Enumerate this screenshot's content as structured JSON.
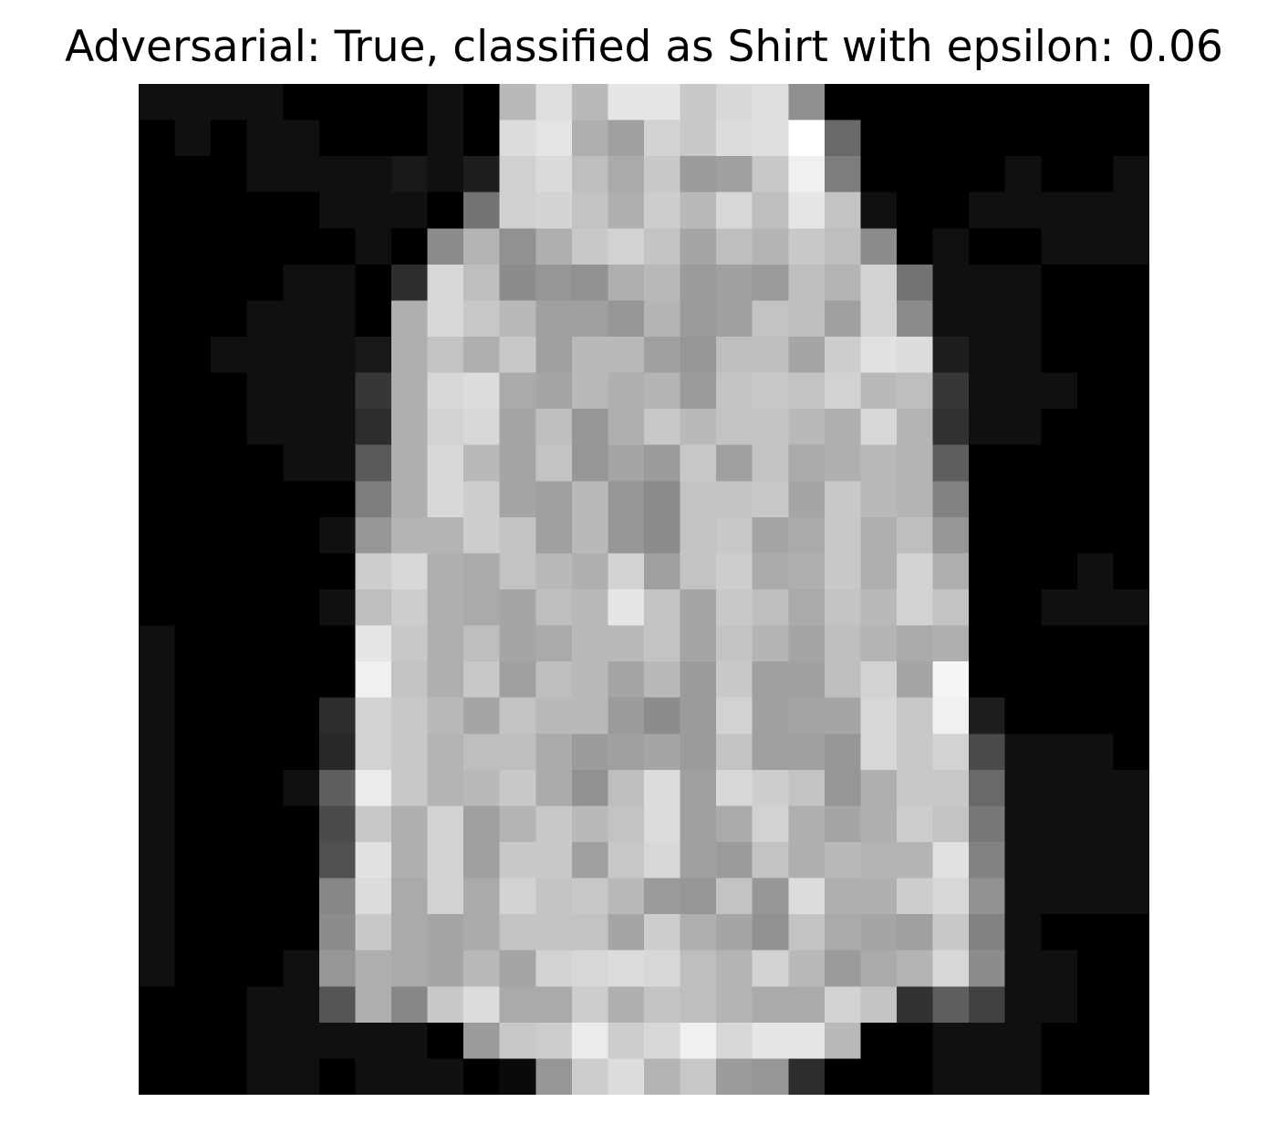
{
  "title": "Adversarial: True, classified as Shirt with epsilon: 0.06",
  "image": {
    "description_colormap": "gray",
    "width_cells": 28,
    "height_cells": 28,
    "pixels": [
      [
        16,
        16,
        16,
        16,
        0,
        0,
        0,
        0,
        16,
        0,
        185,
        222,
        185,
        230,
        230,
        200,
        215,
        222,
        143,
        0,
        0,
        0,
        0,
        0,
        0,
        0,
        0,
        0
      ],
      [
        0,
        16,
        0,
        16,
        16,
        0,
        0,
        0,
        16,
        0,
        220,
        228,
        175,
        160,
        210,
        200,
        220,
        222,
        255,
        105,
        0,
        0,
        0,
        0,
        0,
        0,
        0,
        0
      ],
      [
        0,
        0,
        0,
        16,
        16,
        16,
        16,
        24,
        16,
        30,
        208,
        218,
        190,
        170,
        200,
        155,
        160,
        200,
        240,
        125,
        0,
        0,
        0,
        0,
        16,
        0,
        0,
        16
      ],
      [
        0,
        0,
        0,
        0,
        0,
        16,
        16,
        16,
        0,
        115,
        208,
        212,
        195,
        175,
        205,
        185,
        215,
        190,
        230,
        195,
        16,
        0,
        0,
        16,
        16,
        16,
        16,
        16
      ],
      [
        0,
        0,
        0,
        0,
        0,
        0,
        16,
        0,
        140,
        180,
        145,
        175,
        200,
        210,
        195,
        165,
        190,
        180,
        200,
        190,
        140,
        0,
        16,
        0,
        0,
        16,
        16,
        16
      ],
      [
        0,
        0,
        0,
        0,
        16,
        16,
        0,
        45,
        215,
        190,
        140,
        150,
        145,
        175,
        185,
        155,
        160,
        155,
        190,
        180,
        210,
        115,
        16,
        16,
        16,
        0,
        0,
        0
      ],
      [
        0,
        0,
        0,
        16,
        16,
        16,
        0,
        175,
        215,
        200,
        185,
        160,
        160,
        150,
        180,
        155,
        160,
        195,
        190,
        160,
        210,
        140,
        16,
        16,
        16,
        0,
        0,
        0
      ],
      [
        0,
        0,
        16,
        16,
        16,
        16,
        24,
        175,
        195,
        175,
        200,
        160,
        185,
        185,
        160,
        150,
        190,
        190,
        165,
        205,
        225,
        220,
        30,
        16,
        16,
        0,
        0,
        0
      ],
      [
        0,
        0,
        0,
        16,
        16,
        16,
        55,
        175,
        215,
        220,
        170,
        165,
        185,
        175,
        180,
        155,
        195,
        200,
        195,
        210,
        185,
        190,
        55,
        16,
        16,
        16,
        0,
        0
      ],
      [
        0,
        0,
        0,
        16,
        16,
        16,
        45,
        175,
        210,
        215,
        165,
        190,
        150,
        175,
        200,
        185,
        195,
        195,
        185,
        175,
        215,
        180,
        50,
        16,
        16,
        0,
        0,
        0
      ],
      [
        0,
        0,
        0,
        0,
        16,
        16,
        90,
        175,
        215,
        185,
        165,
        195,
        150,
        165,
        155,
        200,
        160,
        195,
        170,
        175,
        185,
        180,
        95,
        0,
        0,
        0,
        0,
        0
      ],
      [
        0,
        0,
        0,
        0,
        0,
        0,
        125,
        175,
        215,
        205,
        165,
        160,
        185,
        150,
        140,
        195,
        195,
        200,
        165,
        200,
        185,
        180,
        130,
        0,
        0,
        0,
        0,
        0
      ],
      [
        0,
        0,
        0,
        0,
        0,
        16,
        150,
        180,
        180,
        205,
        195,
        160,
        185,
        150,
        140,
        195,
        200,
        165,
        170,
        200,
        175,
        190,
        150,
        0,
        0,
        0,
        0,
        0
      ],
      [
        0,
        0,
        0,
        0,
        0,
        0,
        205,
        215,
        175,
        170,
        195,
        185,
        175,
        210,
        160,
        195,
        205,
        170,
        175,
        200,
        175,
        210,
        175,
        0,
        0,
        0,
        16,
        0
      ],
      [
        0,
        0,
        0,
        0,
        0,
        16,
        190,
        205,
        175,
        170,
        165,
        190,
        185,
        230,
        195,
        165,
        200,
        190,
        170,
        195,
        185,
        210,
        195,
        0,
        0,
        16,
        16,
        16
      ],
      [
        16,
        0,
        0,
        0,
        0,
        0,
        230,
        200,
        175,
        190,
        165,
        170,
        185,
        185,
        195,
        165,
        195,
        180,
        165,
        190,
        180,
        170,
        175,
        0,
        0,
        0,
        0,
        0
      ],
      [
        16,
        0,
        0,
        0,
        0,
        0,
        240,
        195,
        175,
        200,
        160,
        190,
        185,
        165,
        185,
        155,
        200,
        160,
        160,
        190,
        210,
        165,
        245,
        0,
        0,
        0,
        0,
        0
      ],
      [
        16,
        0,
        0,
        0,
        0,
        45,
        210,
        200,
        185,
        165,
        195,
        185,
        185,
        155,
        140,
        155,
        210,
        160,
        165,
        165,
        215,
        200,
        240,
        30,
        0,
        0,
        0,
        0
      ],
      [
        16,
        0,
        0,
        0,
        0,
        40,
        210,
        200,
        180,
        190,
        190,
        170,
        155,
        160,
        165,
        155,
        195,
        160,
        160,
        150,
        215,
        200,
        210,
        75,
        16,
        16,
        16,
        0
      ],
      [
        16,
        0,
        0,
        0,
        16,
        95,
        235,
        200,
        180,
        185,
        200,
        170,
        145,
        190,
        220,
        160,
        215,
        205,
        195,
        150,
        175,
        200,
        200,
        105,
        16,
        16,
        16,
        16
      ],
      [
        16,
        0,
        0,
        0,
        0,
        75,
        200,
        175,
        210,
        160,
        180,
        200,
        185,
        195,
        220,
        160,
        170,
        210,
        175,
        165,
        175,
        205,
        195,
        120,
        16,
        16,
        16,
        16
      ],
      [
        16,
        0,
        0,
        0,
        0,
        80,
        225,
        175,
        210,
        160,
        200,
        200,
        160,
        200,
        215,
        160,
        155,
        195,
        175,
        185,
        180,
        180,
        225,
        130,
        16,
        16,
        16,
        16
      ],
      [
        16,
        0,
        0,
        0,
        0,
        135,
        220,
        170,
        210,
        170,
        210,
        195,
        200,
        185,
        155,
        150,
        195,
        150,
        220,
        175,
        175,
        205,
        215,
        145,
        16,
        16,
        16,
        16
      ],
      [
        16,
        0,
        0,
        0,
        0,
        140,
        200,
        170,
        165,
        170,
        195,
        195,
        195,
        165,
        205,
        175,
        165,
        145,
        195,
        170,
        165,
        160,
        200,
        130,
        16,
        0,
        0,
        0
      ],
      [
        16,
        0,
        0,
        0,
        16,
        150,
        175,
        170,
        165,
        185,
        165,
        210,
        215,
        220,
        215,
        190,
        180,
        210,
        185,
        155,
        170,
        180,
        215,
        140,
        16,
        16,
        0,
        0
      ],
      [
        0,
        0,
        0,
        16,
        16,
        85,
        175,
        135,
        200,
        220,
        170,
        170,
        205,
        175,
        195,
        190,
        180,
        170,
        170,
        210,
        195,
        50,
        95,
        65,
        16,
        16,
        0,
        0
      ],
      [
        0,
        0,
        0,
        16,
        16,
        16,
        16,
        16,
        0,
        155,
        200,
        205,
        235,
        205,
        215,
        240,
        215,
        230,
        230,
        185,
        0,
        0,
        16,
        16,
        16,
        0,
        0,
        0
      ],
      [
        0,
        0,
        0,
        16,
        16,
        0,
        16,
        16,
        16,
        0,
        10,
        150,
        205,
        220,
        180,
        200,
        155,
        150,
        45,
        0,
        0,
        0,
        16,
        16,
        16,
        0,
        0,
        0
      ]
    ]
  }
}
